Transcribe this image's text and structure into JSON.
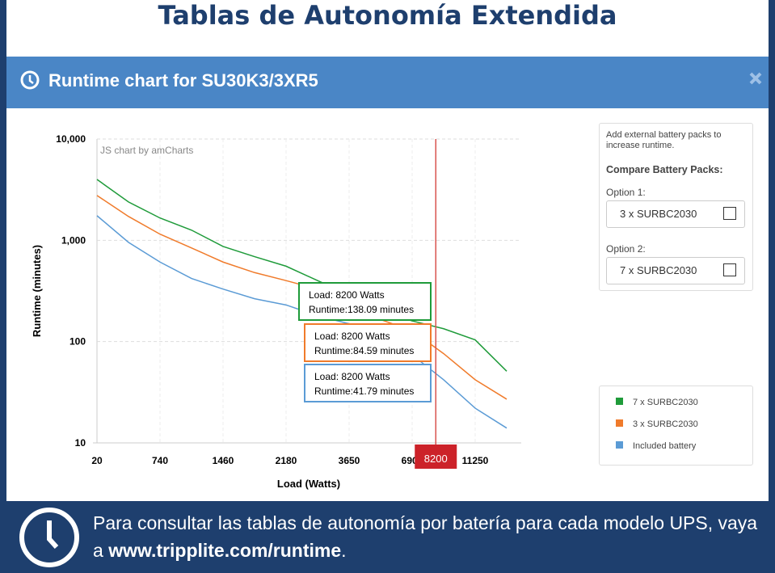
{
  "header": {
    "title": "Tablas de Autonomía Extendida"
  },
  "dialog": {
    "title": "Runtime chart for SU30K3/3XR5"
  },
  "chart_data": {
    "type": "line",
    "credit": "JS chart by amCharts",
    "x_label": "Load (Watts)",
    "y_label": "Runtime (minutes)",
    "categories": [
      "20",
      null,
      "740",
      null,
      "1460",
      null,
      "2180",
      null,
      "3650",
      null,
      "6900",
      null,
      "11250",
      null
    ],
    "series": [
      {
        "name": "7 x SURBC2030",
        "color": "#1f9b3a",
        "values": [
          3990,
          2390,
          1660,
          1260,
          870,
          690,
          555,
          400,
          290,
          200,
          160,
          134,
          104,
          51
        ]
      },
      {
        "name": "3 x SURBC2030",
        "color": "#f07b2b",
        "values": [
          2770,
          1720,
          1150,
          840,
          610,
          480,
          400,
          330,
          240,
          165,
          128,
          76,
          42,
          27
        ]
      },
      {
        "name": "Included battery",
        "color": "#5b9bd5",
        "values": [
          1750,
          955,
          610,
          420,
          330,
          265,
          230,
          180,
          150,
          115,
          74,
          42,
          22,
          14
        ]
      }
    ],
    "ylim": [
      10,
      10000
    ],
    "yticks": [
      10,
      100,
      {
        "value": 1000,
        "label": "1,000"
      },
      {
        "value": 10000,
        "label": "10,000"
      }
    ],
    "log_scale": true,
    "grid": true,
    "cursor": {
      "label": "8200"
    },
    "tooltips": [
      {
        "load": "Load: 8200 Watts",
        "runtime": "Runtime:138.09 minutes"
      },
      {
        "load": "Load: 8200 Watts",
        "runtime": "Runtime:84.59 minutes"
      },
      {
        "load": "Load: 8200 Watts",
        "runtime": "Runtime:41.79 minutes"
      }
    ]
  },
  "sidebar": {
    "hint": "Add external battery packs to increase runtime.",
    "heading": "Compare Battery Packs:",
    "options": [
      {
        "label": "Option 1:",
        "value": "3 x SURBC2030"
      },
      {
        "label": "Option 2:",
        "value": "7 x SURBC2030"
      }
    ]
  },
  "footer": {
    "text": "Para consultar las tablas de autonomía por batería para cada modelo UPS, vaya a ",
    "link": "www.tripplite.com/runtime",
    "end": "."
  }
}
